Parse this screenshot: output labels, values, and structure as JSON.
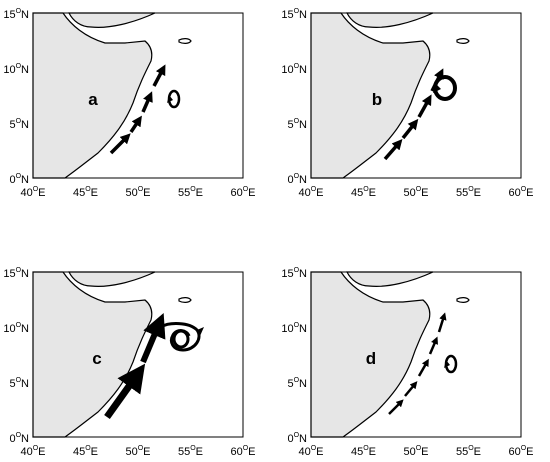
{
  "figure": {
    "panels": [
      {
        "label": "a",
        "scenario": "dashed-coastal-current-small-gyre"
      },
      {
        "label": "b",
        "scenario": "dashed-coastal-current-large-gyre"
      },
      {
        "label": "c",
        "scenario": "strong-coastal-current-with-gyre"
      },
      {
        "label": "d",
        "scenario": "weak-dashed-current-small-gyre"
      }
    ],
    "axes": {
      "lon_ticks": [
        "40",
        "45",
        "50",
        "55",
        "60"
      ],
      "lon_suffix": "E",
      "lat_ticks": [
        "0",
        "5",
        "10",
        "15"
      ],
      "lat_suffix": "N",
      "degree_symbol": "O",
      "lon_range": [
        40,
        60
      ],
      "lat_range": [
        0,
        15
      ]
    },
    "colors": {
      "land": "#e6e6e6",
      "sea": "#ffffff",
      "coast": "#000000",
      "arrows": "#000000"
    }
  }
}
